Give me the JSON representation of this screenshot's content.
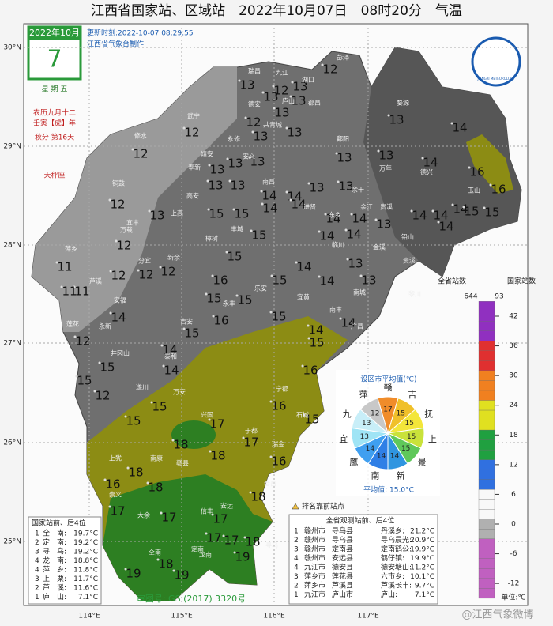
{
  "header": {
    "title": "江西省国家站、区域站　2022年10月07日　08时20分　气温"
  },
  "calendar": {
    "month": "2022年10月",
    "day": "7",
    "weekday": "星 期 五",
    "lunar": "农历九月十二",
    "year": "壬寅【虎】年",
    "term": "秋分 第16天",
    "zodiac": "天秤座"
  },
  "update": {
    "time": "更新时刻:2022-10-07 08:29:55",
    "source": "江西省气象台制作",
    "logo": "JIANGXI METEOROLOGY"
  },
  "axes": {
    "lat": [
      "30°N",
      "29°N",
      "28°N",
      "27°N",
      "26°N",
      "25°N"
    ],
    "lon": [
      "114°E",
      "115°E",
      "116°E",
      "117°E"
    ]
  },
  "map": {
    "temperatures": [
      13,
      12,
      13,
      12,
      13,
      13,
      12,
      13,
      12,
      13,
      13,
      13,
      14,
      12,
      13,
      13,
      13,
      13,
      13,
      14,
      16,
      16,
      13,
      13,
      14,
      14,
      13,
      13,
      12,
      13,
      15,
      15,
      14,
      14,
      13,
      14,
      14,
      14,
      14,
      15,
      15,
      14,
      14,
      12,
      15,
      14,
      14,
      14,
      15,
      13,
      11,
      11,
      11,
      12,
      12,
      12,
      16,
      15,
      14,
      13,
      15,
      15,
      14,
      16,
      15,
      14,
      14,
      12,
      15,
      14,
      15,
      14,
      15,
      16,
      15,
      12,
      15,
      16,
      15,
      15,
      17,
      17,
      18,
      16,
      18,
      16,
      18,
      18,
      18,
      17,
      17,
      17,
      17,
      17,
      18,
      18,
      19,
      19,
      19
    ],
    "cities": [
      "瑞昌",
      "九江",
      "彭泽",
      "湖口",
      "武宁",
      "德安",
      "庐山",
      "共青城",
      "都昌",
      "修水",
      "永修",
      "鄱阳",
      "婺源",
      "靖安",
      "奉新",
      "安义",
      "南昌",
      "余干",
      "万年",
      "德兴",
      "玉山",
      "铜鼓",
      "宜丰",
      "上高",
      "高安",
      "丰城",
      "进贤",
      "东乡",
      "余江",
      "贵溪",
      "铅山",
      "万载",
      "分宜",
      "新余",
      "樟树",
      "临川",
      "金溪",
      "资溪",
      "萍乡",
      "芦溪",
      "莲花",
      "安福",
      "吉安",
      "永丰",
      "乐安",
      "宜黄",
      "南城",
      "黎川",
      "永新",
      "泰和",
      "南丰",
      "广昌",
      "井冈山",
      "遂川",
      "万安",
      "宁都",
      "石城",
      "兴国",
      "于都",
      "瑞金",
      "上犹",
      "崇义",
      "南康",
      "赣县",
      "会昌",
      "大余",
      "信丰",
      "安远",
      "寻乌",
      "龙南",
      "全南",
      "定南"
    ]
  },
  "colorbar": {
    "total_label": "全省站数",
    "national_label": "国家站数",
    "total": 644,
    "national": 93,
    "ticks": [
      42,
      36,
      30,
      24,
      18,
      12,
      6,
      0,
      -6,
      -12
    ],
    "lim": [
      -15,
      45
    ],
    "unit": "单位:℃"
  },
  "pie": {
    "title": "设区市平均值(℃)",
    "names": [
      "赣",
      "吉",
      "抚",
      "上",
      "景",
      "新",
      "南",
      "鹰",
      "宜",
      "九",
      "萍"
    ],
    "values": [
      17,
      15,
      15,
      15,
      15,
      14,
      14,
      14,
      13,
      13,
      12
    ],
    "colors": [
      "#f08c2a",
      "#f0c02a",
      "#f3e63a",
      "#c9e23a",
      "#5fc85a",
      "#2f95e0",
      "#2f7fe6",
      "#3f9ff0",
      "#9fe4f5",
      "#c8eef8",
      "#c8c8c8"
    ],
    "average": "平均值: 15.0°C"
  },
  "left_table": {
    "title": "国家站前、后4位",
    "rows": [
      [
        "1",
        "全　南:",
        "19.7°C"
      ],
      [
        "2",
        "定　南:",
        "19.2°C"
      ],
      [
        "3",
        "寻　乌:",
        "19.2°C"
      ],
      [
        "4",
        "龙　南:",
        "18.8°C"
      ],
      [
        "4",
        "萍　乡:",
        "11.8°C"
      ],
      [
        "3",
        "上　栗:",
        "11.7°C"
      ],
      [
        "2",
        "芦　溪:",
        "11.6°C"
      ],
      [
        "1",
        "庐　山:",
        "7.1°C"
      ]
    ]
  },
  "right_table": {
    "legend": "排名靠前站点",
    "title": "全省观测站前、后4位",
    "rows": [
      [
        "1",
        "赣州市",
        "寻乌县",
        "丹溪乡:",
        "21.2°C"
      ],
      [
        "2",
        "赣州市",
        "寻乌县",
        "寻乌晨光:",
        "20.9°C"
      ],
      [
        "3",
        "赣州市",
        "定南县",
        "定南鹤公:",
        "19.9°C"
      ],
      [
        "4",
        "赣州市",
        "安远县",
        "鹤仔镇:",
        "19.9°C"
      ],
      [
        "4",
        "九江市",
        "德安县",
        "德安塘山:",
        "11.2°C"
      ],
      [
        "3",
        "萍乡市",
        "莲花县",
        "六市乡:",
        "10.1°C"
      ],
      [
        "2",
        "萍乡市",
        "芦溪县",
        "芦溪长丰:",
        "9.7°C"
      ],
      [
        "1",
        "九江市",
        "庐山市",
        "庐山:",
        "7.1°C"
      ]
    ]
  },
  "footer": {
    "approval": "审图号: GS (2017) 3320号",
    "watermark": "@江西气象微博"
  }
}
